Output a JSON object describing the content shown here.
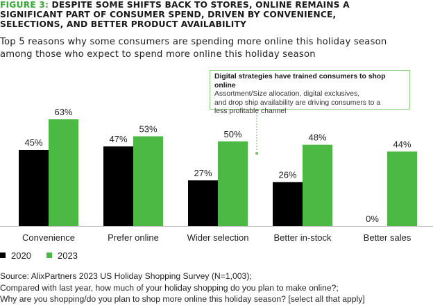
{
  "figure": {
    "label": "FIGURE 3:",
    "title_line1": "DESPITE SOME SHIFTS BACK TO STORES, ONLINE REMAINS A",
    "title_line2": "SIGNIFICANT PART OF CONSUMER SPEND, DRIVEN BY CONVENIENCE,",
    "title_line3": "SELECTIONS, AND BETTER PRODUCT AVAILABILITY"
  },
  "subtitle": {
    "line1": "Top 5 reasons why some consumers are spending more online this holiday season",
    "line2": "among those who expect to spend more online this holiday season"
  },
  "callout": {
    "heading": "Digital strategies have trained consumers to shop online",
    "line1": "Assortment/Size allocation, digital exclusives,",
    "line2": "and drop ship availability are driving consumers to a",
    "line3": "less profitable channel"
  },
  "chart_data": {
    "type": "bar",
    "categories": [
      "Convenience",
      "Prefer online",
      "Wider selection",
      "Better in-stock",
      "Better sales"
    ],
    "series": [
      {
        "name": "2020",
        "values": [
          45,
          47,
          27,
          26,
          0
        ],
        "labels": [
          "45%",
          "47%",
          "27%",
          "26%",
          "0%"
        ],
        "color": "#000000"
      },
      {
        "name": "2023",
        "values": [
          63,
          53,
          50,
          48,
          44
        ],
        "labels": [
          "63%",
          "53%",
          "50%",
          "48%",
          "44%"
        ],
        "color": "#4cb944"
      }
    ],
    "ylim": [
      0,
      63
    ],
    "grid": false,
    "legend_position": "bottom-left",
    "baseline_color": "#c8c8c8",
    "callout_connector_color": "#6cc45e"
  },
  "source": {
    "line1": "Source: AlixPartners 2023 US Holiday Shopping Survey (N=1,003);",
    "line2": "Compared with last year, how much of your holiday shopping do you plan to make online?;",
    "line3": "Why are you shopping/do you plan to shop more online this holiday season? [select all that apply]"
  }
}
